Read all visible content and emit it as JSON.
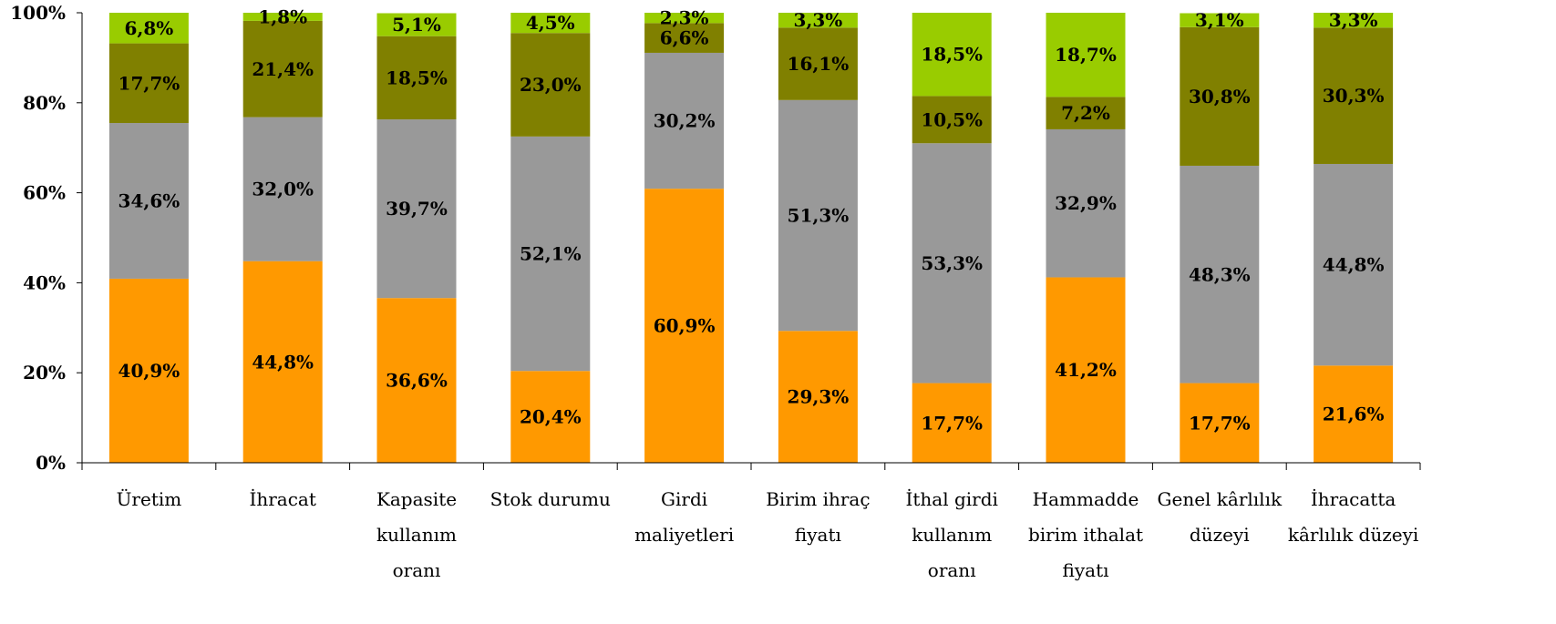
{
  "chart_data": {
    "type": "bar",
    "stacked": true,
    "percent_stacked": true,
    "ylim": [
      0,
      100
    ],
    "yticks": [
      "0%",
      "20%",
      "40%",
      "60%",
      "80%",
      "100%"
    ],
    "grid": false,
    "legend": "none",
    "categories": [
      [
        "Üretim"
      ],
      [
        "İhracat"
      ],
      [
        "Kapasite",
        "kullanım",
        "oranı"
      ],
      [
        "Stok durumu"
      ],
      [
        "Girdi",
        "maliyetleri"
      ],
      [
        "Birim ihraç",
        "fiyatı"
      ],
      [
        "İthal girdi",
        "kullanım",
        "oranı"
      ],
      [
        "Hammadde",
        "birim ithalat",
        "fiyatı"
      ],
      [
        "Genel kârlılık",
        "düzeyi"
      ],
      [
        "İhracatta",
        "kârlılık düzeyi"
      ]
    ],
    "series": [
      {
        "color": "#FF9900",
        "values": [
          40.9,
          44.8,
          36.6,
          20.4,
          60.9,
          29.3,
          17.7,
          41.2,
          17.7,
          21.6
        ],
        "labels": [
          "40,9%",
          "44,8%",
          "36,6%",
          "20,4%",
          "60,9%",
          "29,3%",
          "17,7%",
          "41,2%",
          "17,7%",
          "21,6%"
        ]
      },
      {
        "color": "#999999",
        "values": [
          34.6,
          32.0,
          39.7,
          52.1,
          30.2,
          51.3,
          53.3,
          32.9,
          48.3,
          44.8
        ],
        "labels": [
          "34,6%",
          "32,0%",
          "39,7%",
          "52,1%",
          "30,2%",
          "51,3%",
          "53,3%",
          "32,9%",
          "48,3%",
          "44,8%"
        ]
      },
      {
        "color": "#808000",
        "values": [
          17.7,
          21.4,
          18.5,
          23.0,
          6.6,
          16.1,
          10.5,
          7.2,
          30.8,
          30.3
        ],
        "labels": [
          "17,7%",
          "21,4%",
          "18,5%",
          "23,0%",
          "6,6%",
          "16,1%",
          "10,5%",
          "7,2%",
          "30,8%",
          "30,3%"
        ]
      },
      {
        "color": "#99CC00",
        "values": [
          6.8,
          1.8,
          5.1,
          4.5,
          2.3,
          3.3,
          18.5,
          18.7,
          3.1,
          3.3
        ],
        "labels": [
          "6,8%",
          "1,8%",
          "5,1%",
          "4,5%",
          "2,3%",
          "3,3%",
          "18,5%",
          "18,7%",
          "3,1%",
          "3,3%"
        ]
      }
    ]
  }
}
